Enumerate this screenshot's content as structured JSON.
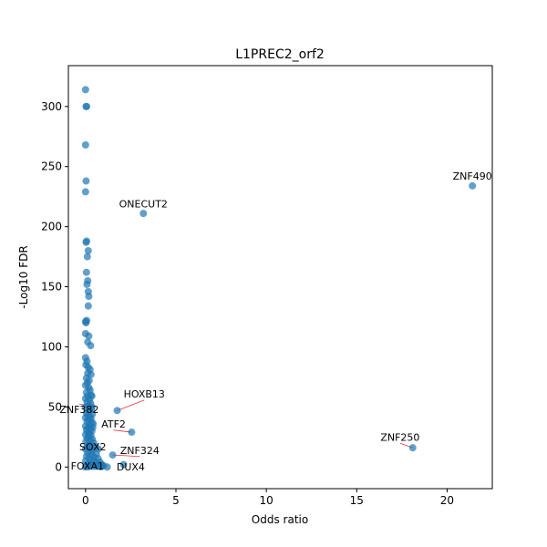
{
  "chart_data": {
    "type": "scatter",
    "title": "L1PREC2_orf2",
    "xlabel": "Odds ratio",
    "ylabel": "-Log10 FDR",
    "xlim": [
      -0.95,
      22.5
    ],
    "ylim": [
      -18,
      334
    ],
    "xticks": [
      0,
      5,
      10,
      15,
      20
    ],
    "yticks": [
      0,
      50,
      100,
      150,
      200,
      250,
      300
    ],
    "grid": false,
    "point_color": "#1f77b4",
    "leader_color": "#e3343e",
    "points": [
      {
        "x": 0.0,
        "y": 314
      },
      {
        "x": 0.03,
        "y": 300
      },
      {
        "x": 0.06,
        "y": 300
      },
      {
        "x": 0.0,
        "y": 268
      },
      {
        "x": 0.03,
        "y": 238
      },
      {
        "x": 0.0,
        "y": 229
      },
      {
        "x": 0.06,
        "y": 188
      },
      {
        "x": 0.03,
        "y": 187
      },
      {
        "x": 0.15,
        "y": 180
      },
      {
        "x": 0.1,
        "y": 175
      },
      {
        "x": 0.05,
        "y": 162
      },
      {
        "x": 0.12,
        "y": 155
      },
      {
        "x": 0.08,
        "y": 152
      },
      {
        "x": 0.15,
        "y": 146
      },
      {
        "x": 0.18,
        "y": 142
      },
      {
        "x": 0.15,
        "y": 134
      },
      {
        "x": 0.06,
        "y": 122
      },
      {
        "x": 0.0,
        "y": 121
      },
      {
        "x": 0.03,
        "y": 120
      },
      {
        "x": 0.0,
        "y": 111
      },
      {
        "x": 0.18,
        "y": 109
      },
      {
        "x": 0.12,
        "y": 104
      },
      {
        "x": 0.28,
        "y": 101
      },
      {
        "x": 0.0,
        "y": 91
      },
      {
        "x": 0.08,
        "y": 88
      },
      {
        "x": 0.02,
        "y": 85
      },
      {
        "x": 0.15,
        "y": 83
      },
      {
        "x": 0.25,
        "y": 81
      },
      {
        "x": 0.12,
        "y": 78
      },
      {
        "x": 0.3,
        "y": 77
      },
      {
        "x": 0.05,
        "y": 74
      },
      {
        "x": 0.2,
        "y": 72
      },
      {
        "x": 0.1,
        "y": 70
      },
      {
        "x": 0.0,
        "y": 68
      },
      {
        "x": 0.18,
        "y": 66
      },
      {
        "x": 0.25,
        "y": 64
      },
      {
        "x": 0.05,
        "y": 62
      },
      {
        "x": 0.3,
        "y": 60
      },
      {
        "x": 0.12,
        "y": 59
      },
      {
        "x": 0.35,
        "y": 59
      },
      {
        "x": 0.0,
        "y": 57
      },
      {
        "x": 0.22,
        "y": 56
      },
      {
        "x": 0.08,
        "y": 54
      },
      {
        "x": 0.28,
        "y": 53
      },
      {
        "x": 0.15,
        "y": 51
      },
      {
        "x": 0.0,
        "y": 50
      },
      {
        "x": 0.32,
        "y": 48
      },
      {
        "x": 0.2,
        "y": 47
      },
      {
        "x": 0.05,
        "y": 45
      },
      {
        "x": 0.38,
        "y": 44
      },
      {
        "x": 0.12,
        "y": 43
      },
      {
        "x": 0.25,
        "y": 42
      },
      {
        "x": 0.0,
        "y": 41
      },
      {
        "x": 0.3,
        "y": 40
      },
      {
        "x": 0.18,
        "y": 39
      },
      {
        "x": 0.08,
        "y": 38
      },
      {
        "x": 0.35,
        "y": 37
      },
      {
        "x": 0.42,
        "y": 36
      },
      {
        "x": 0.22,
        "y": 35
      },
      {
        "x": 0.0,
        "y": 34
      },
      {
        "x": 0.15,
        "y": 33
      },
      {
        "x": 0.4,
        "y": 33
      },
      {
        "x": 0.28,
        "y": 32
      },
      {
        "x": 0.05,
        "y": 31
      },
      {
        "x": 0.35,
        "y": 30
      },
      {
        "x": 0.12,
        "y": 29
      },
      {
        "x": 0.22,
        "y": 28
      },
      {
        "x": 0.0,
        "y": 27
      },
      {
        "x": 0.3,
        "y": 26
      },
      {
        "x": 0.18,
        "y": 25
      },
      {
        "x": 0.08,
        "y": 24
      },
      {
        "x": 0.38,
        "y": 23
      },
      {
        "x": 0.25,
        "y": 22
      },
      {
        "x": 0.02,
        "y": 21
      },
      {
        "x": 0.45,
        "y": 20
      },
      {
        "x": 0.15,
        "y": 19
      },
      {
        "x": 0.32,
        "y": 18
      },
      {
        "x": 0.1,
        "y": 17
      },
      {
        "x": 0.55,
        "y": 17
      },
      {
        "x": 0.22,
        "y": 16
      },
      {
        "x": 0.0,
        "y": 15
      },
      {
        "x": 0.4,
        "y": 14
      },
      {
        "x": 0.28,
        "y": 13
      },
      {
        "x": 0.12,
        "y": 12
      },
      {
        "x": 0.6,
        "y": 11
      },
      {
        "x": 0.35,
        "y": 10
      },
      {
        "x": 0.05,
        "y": 9
      },
      {
        "x": 0.5,
        "y": 8
      },
      {
        "x": 0.2,
        "y": 8
      },
      {
        "x": 0.7,
        "y": 7
      },
      {
        "x": 0.3,
        "y": 6
      },
      {
        "x": 0.0,
        "y": 5
      },
      {
        "x": 0.45,
        "y": 5
      },
      {
        "x": 0.8,
        "y": 4
      },
      {
        "x": 0.15,
        "y": 3
      },
      {
        "x": 0.6,
        "y": 3
      },
      {
        "x": 0.35,
        "y": 2
      },
      {
        "x": 0.9,
        "y": 2
      },
      {
        "x": 0.05,
        "y": 1
      },
      {
        "x": 0.25,
        "y": 1
      },
      {
        "x": 0.55,
        "y": 1
      },
      {
        "x": 1.0,
        "y": 1
      },
      {
        "x": 0.7,
        "y": 0.5
      },
      {
        "x": 0.45,
        "y": 0.5
      },
      {
        "x": 0.15,
        "y": 0.3
      },
      {
        "x": 0.85,
        "y": 0.3
      },
      {
        "x": 1.2,
        "y": 0
      },
      {
        "x": 0.0,
        "y": 0
      }
    ],
    "labeled_points": [
      {
        "label": "ZNF490",
        "x": 21.4,
        "y": 234,
        "text_dx": 0,
        "text_dy": 5,
        "anchor": "middle"
      },
      {
        "label": "ONECUT2",
        "x": 3.2,
        "y": 211,
        "text_dx": 0,
        "text_dy": 5,
        "anchor": "middle"
      },
      {
        "label": "HOXB13",
        "x": 1.75,
        "y": 47,
        "text_dx": 1.5,
        "text_dy": 11,
        "anchor": "middle"
      },
      {
        "label": "ZNF382",
        "x": 0.35,
        "y": 50,
        "text_dx": -0.7,
        "text_dy": -5,
        "anchor": "middle"
      },
      {
        "label": "ATF2",
        "x": 2.55,
        "y": 29,
        "text_dx": -1.0,
        "text_dy": 4,
        "anchor": "middle"
      },
      {
        "label": "SOX2",
        "x": 0.7,
        "y": 15,
        "text_dx": -0.3,
        "text_dy": -1,
        "anchor": "middle"
      },
      {
        "label": "ZNF324",
        "x": 1.5,
        "y": 10,
        "text_dx": 1.5,
        "text_dy": 1,
        "anchor": "middle"
      },
      {
        "label": "FOXA1",
        "x": 0.9,
        "y": 1,
        "text_dx": -0.8,
        "text_dy": -3,
        "anchor": "middle"
      },
      {
        "label": "DUX4",
        "x": 2.1,
        "y": 2,
        "text_dx": 0.4,
        "text_dy": -5,
        "anchor": "middle"
      },
      {
        "label": "ZNF250",
        "x": 18.1,
        "y": 16,
        "text_dx": -0.7,
        "text_dy": 6,
        "anchor": "middle"
      }
    ]
  }
}
